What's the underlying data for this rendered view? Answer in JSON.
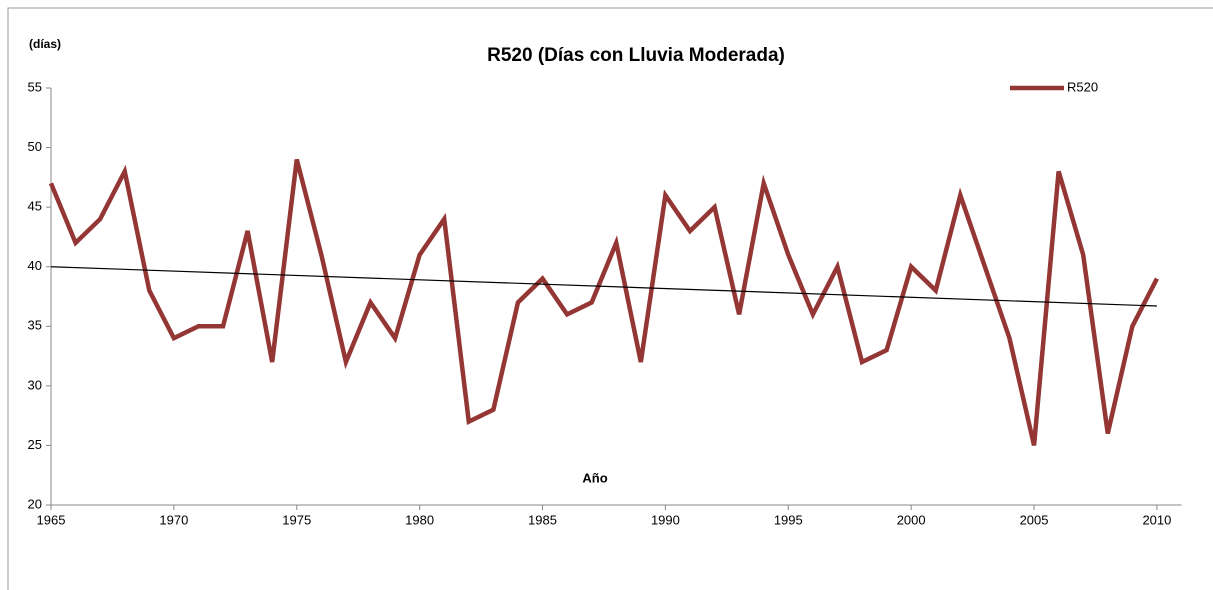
{
  "chart_data": {
    "type": "line",
    "title": "R520 (Días con Lluvia Moderada)",
    "y_label": "(días)",
    "x_label": "Año",
    "x": [
      1965,
      1966,
      1967,
      1968,
      1969,
      1970,
      1971,
      1972,
      1973,
      1974,
      1975,
      1976,
      1977,
      1978,
      1979,
      1980,
      1981,
      1982,
      1983,
      1984,
      1985,
      1986,
      1987,
      1988,
      1989,
      1990,
      1991,
      1992,
      1993,
      1994,
      1995,
      1996,
      1997,
      1998,
      1999,
      2000,
      2001,
      2002,
      2003,
      2004,
      2005,
      2006,
      2007,
      2008,
      2009,
      2010
    ],
    "series": [
      {
        "name": "R520",
        "color": "#943634",
        "values": [
          47,
          42,
          44,
          48,
          38,
          34,
          35,
          35,
          43,
          32,
          49,
          41,
          32,
          37,
          34,
          41,
          44,
          27,
          28,
          37,
          39,
          36,
          37,
          42,
          32,
          46,
          43,
          45,
          36,
          47,
          41,
          36,
          40,
          32,
          33,
          40,
          38,
          46,
          40,
          34,
          25,
          48,
          41,
          26,
          35,
          39
        ]
      }
    ],
    "trend": {
      "x": [
        1965,
        2010
      ],
      "values": [
        40,
        36.7
      ],
      "color": "#000000"
    },
    "xlim": [
      1965,
      2011
    ],
    "xticks": [
      1965,
      1970,
      1975,
      1980,
      1985,
      1990,
      1995,
      2000,
      2005,
      2010
    ],
    "ylim": [
      20,
      55
    ],
    "yticks": [
      20,
      25,
      30,
      35,
      40,
      45,
      50,
      55
    ],
    "legend": "top-right",
    "grid": false
  }
}
